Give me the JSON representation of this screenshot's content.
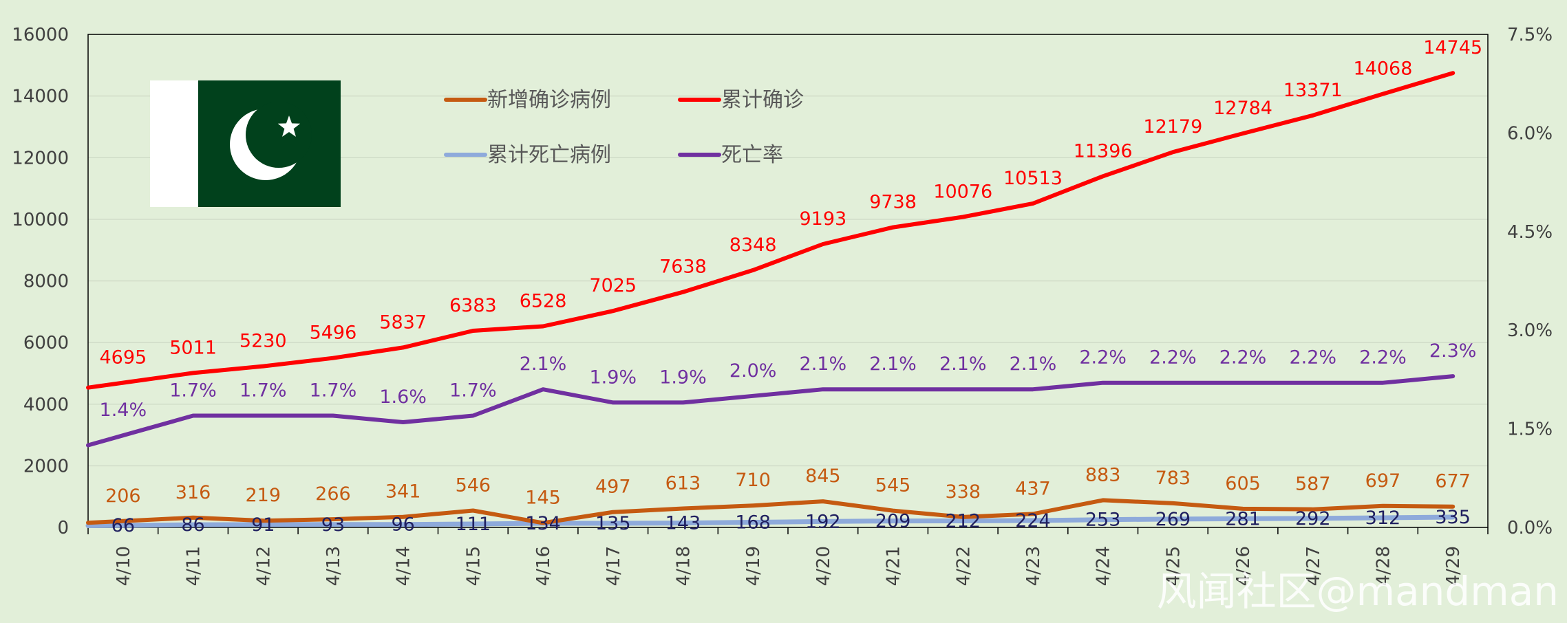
{
  "chart_data": {
    "type": "line",
    "categories": [
      "4/10",
      "4/11",
      "4/12",
      "4/13",
      "4/14",
      "4/15",
      "4/16",
      "4/17",
      "4/18",
      "4/19",
      "4/20",
      "4/21",
      "4/22",
      "4/23",
      "4/24",
      "4/25",
      "4/26",
      "4/27",
      "4/28",
      "4/29"
    ],
    "series": [
      {
        "name": "新增确诊病例",
        "axis": "left",
        "color": "#c55a11",
        "values": [
          206,
          316,
          219,
          266,
          341,
          546,
          145,
          497,
          613,
          710,
          845,
          545,
          338,
          437,
          883,
          783,
          605,
          587,
          697,
          677
        ]
      },
      {
        "name": "累计确诊",
        "axis": "left",
        "color": "#ff0000",
        "values": [
          4695,
          5011,
          5230,
          5496,
          5837,
          6383,
          6528,
          7025,
          7638,
          8348,
          9193,
          9738,
          10076,
          10513,
          11396,
          12179,
          12784,
          13371,
          14068,
          14745
        ]
      },
      {
        "name": "累计死亡病例",
        "axis": "left",
        "color": "#8eaadb",
        "values": [
          66,
          86,
          91,
          93,
          96,
          111,
          134,
          135,
          143,
          168,
          192,
          209,
          212,
          224,
          253,
          269,
          281,
          292,
          312,
          335
        ]
      },
      {
        "name": "死亡率",
        "axis": "right",
        "color": "#7030a0",
        "values": [
          1.4,
          1.7,
          1.7,
          1.7,
          1.6,
          1.7,
          2.1,
          1.9,
          1.9,
          2.0,
          2.1,
          2.1,
          2.1,
          2.1,
          2.2,
          2.2,
          2.2,
          2.2,
          2.2,
          2.3
        ],
        "labels": [
          "1.4%",
          "1.7%",
          "1.7%",
          "1.7%",
          "1.6%",
          "1.7%",
          "2.1%",
          "1.9%",
          "1.9%",
          "2.0%",
          "2.1%",
          "2.1%",
          "2.1%",
          "2.1%",
          "2.2%",
          "2.2%",
          "2.2%",
          "2.2%",
          "2.2%",
          "2.3%"
        ]
      }
    ],
    "ylim": [
      0,
      16000
    ],
    "yticks": [
      "0",
      "2000",
      "4000",
      "6000",
      "8000",
      "10000",
      "12000",
      "14000",
      "16000"
    ],
    "y2lim": [
      0,
      7.5
    ],
    "y2ticks": [
      "0.0%",
      "1.5%",
      "3.0%",
      "4.5%",
      "6.0%",
      "7.5%"
    ],
    "legend_position": "top-left",
    "grid": true
  },
  "watermark": "风闻社区@mandman",
  "flag": {
    "name": "Pakistan",
    "green": "#01411c",
    "white": "#ffffff"
  }
}
